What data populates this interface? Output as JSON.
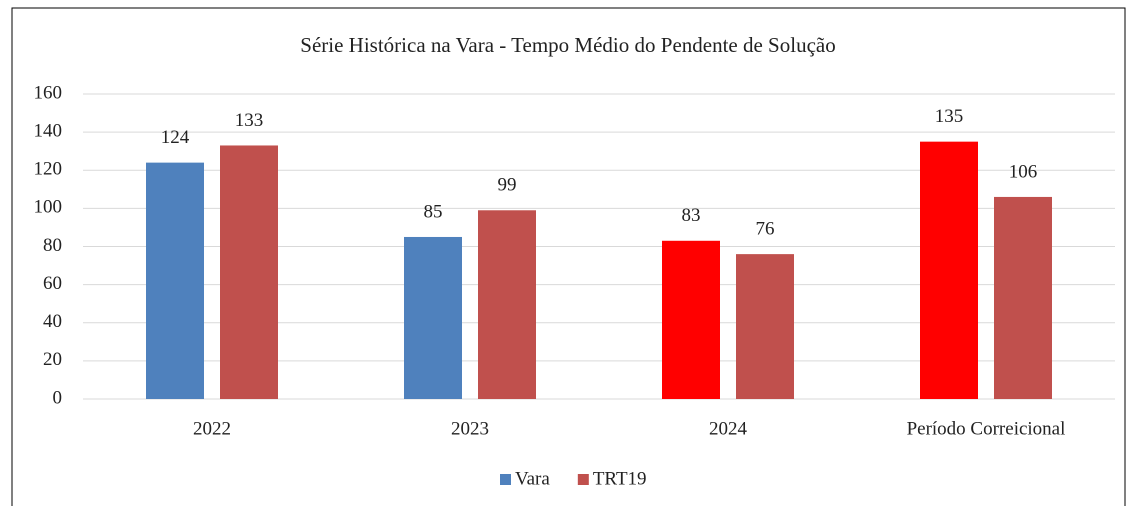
{
  "chart_data": {
    "type": "bar",
    "title": "Série Histórica na Vara - Tempo Médio do Pendente de Solução",
    "categories": [
      "2022",
      "2023",
      "2024",
      "Período Correicional"
    ],
    "series": [
      {
        "name": "Vara",
        "color": "#4f81bd",
        "colors": [
          "#4f81bd",
          "#4f81bd",
          "#ff0000",
          "#ff0000"
        ],
        "values": [
          124,
          85,
          83,
          135
        ]
      },
      {
        "name": "TRT19",
        "color": "#c0504d",
        "values": [
          133,
          99,
          76,
          106
        ]
      }
    ],
    "ylim": [
      0,
      160
    ],
    "yticks": [
      0,
      20,
      40,
      60,
      80,
      100,
      120,
      140,
      160
    ],
    "grid": true,
    "legend": "bottom"
  }
}
